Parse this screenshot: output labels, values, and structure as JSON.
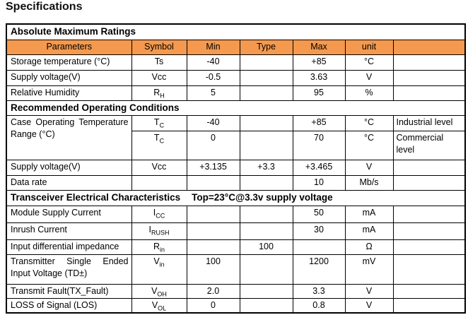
{
  "page_title": "Specifications",
  "colors": {
    "header_bg": "#F4994E",
    "border": "#000000",
    "text": "#000000"
  },
  "table": {
    "rows": [
      {
        "type": "section",
        "title": "Absolute Maximum Ratings"
      },
      {
        "type": "colhead",
        "cells": [
          "Parameters",
          "Symbol",
          "Min",
          "Type",
          "Max",
          "unit",
          ""
        ]
      },
      {
        "type": "data",
        "param": {
          "lines": [
            "Storage temperature (°C)"
          ]
        },
        "symbol": "Ts",
        "min": "-40",
        "typ": "",
        "max": "+85",
        "unit": "°C",
        "note": ""
      },
      {
        "type": "data",
        "param": {
          "lines": [
            "Supply voltage(V)"
          ]
        },
        "symbol": "Vcc",
        "min": "-0.5",
        "typ": "",
        "max": "3.63",
        "unit": "V",
        "note": ""
      },
      {
        "type": "data",
        "param": {
          "lines": [
            "Relative Humidity"
          ]
        },
        "symbol": "R_{H}",
        "min": "5",
        "typ": "",
        "max": "95",
        "unit": "%",
        "note": ""
      },
      {
        "type": "section",
        "title": "Recommended Operating Conditions"
      },
      {
        "type": "data",
        "param": {
          "lines": [
            "Case Operating Temperature",
            "Range (°C)"
          ],
          "justify": true,
          "rowspan": 2
        },
        "symbol": "T_{C}",
        "min": "-40",
        "typ": "",
        "max": "+85",
        "unit": "°C",
        "note": "Industrial level"
      },
      {
        "type": "data",
        "param": null,
        "symbol": "T_{C}",
        "min": "0",
        "typ": "",
        "max": "70",
        "unit": "°C",
        "note": "Commercial level"
      },
      {
        "type": "data",
        "param": {
          "lines": [
            "Supply voltage(V)"
          ]
        },
        "symbol": "Vcc",
        "min": "+3.135",
        "typ": "+3.3",
        "max": "+3.465",
        "unit": "V",
        "note": ""
      },
      {
        "type": "data",
        "param": {
          "lines": [
            "Data rate"
          ]
        },
        "symbol": "",
        "min": "",
        "typ": "",
        "max": "10",
        "unit": "Mb/s",
        "note": ""
      },
      {
        "type": "section",
        "title": "Transceiver Electrical Characteristics",
        "condition": "Top=23°C@3.3v supply voltage"
      },
      {
        "type": "data",
        "param": {
          "lines": [
            "Module Supply Current"
          ]
        },
        "symbol": "I_{CC}",
        "min": "",
        "typ": "",
        "max": "50",
        "unit": "mA",
        "note": ""
      },
      {
        "type": "data",
        "param": {
          "lines": [
            "Inrush Current"
          ]
        },
        "symbol": "I_{RUSH}",
        "min": "",
        "typ": "",
        "max": "30",
        "unit": "mA",
        "note": ""
      },
      {
        "type": "data",
        "param": {
          "lines": [
            "Input differential impedance"
          ]
        },
        "symbol": "R_{in}",
        "min": "",
        "typ": "100",
        "max": "",
        "unit": "Ω",
        "note": ""
      },
      {
        "type": "data",
        "param": {
          "lines": [
            "Transmitter Single Ended",
            "Input Voltage (TD±)"
          ],
          "justify": true
        },
        "symbol": "V_{in}",
        "min": "100",
        "typ": "",
        "max": "1200",
        "unit": "mV",
        "note": ""
      },
      {
        "type": "data",
        "param": {
          "lines": [
            "Transmit Fault(TX_Fault)"
          ]
        },
        "symbol": "V_{OH}",
        "min": "2.0",
        "typ": "",
        "max": "3.3",
        "unit": "V",
        "note": ""
      },
      {
        "type": "data",
        "param": {
          "lines": [
            "LOSS of Signal (LOS)"
          ]
        },
        "symbol": "V_{OL}",
        "min": "0",
        "typ": "",
        "max": "0.8",
        "unit": "V",
        "note": ""
      }
    ]
  }
}
